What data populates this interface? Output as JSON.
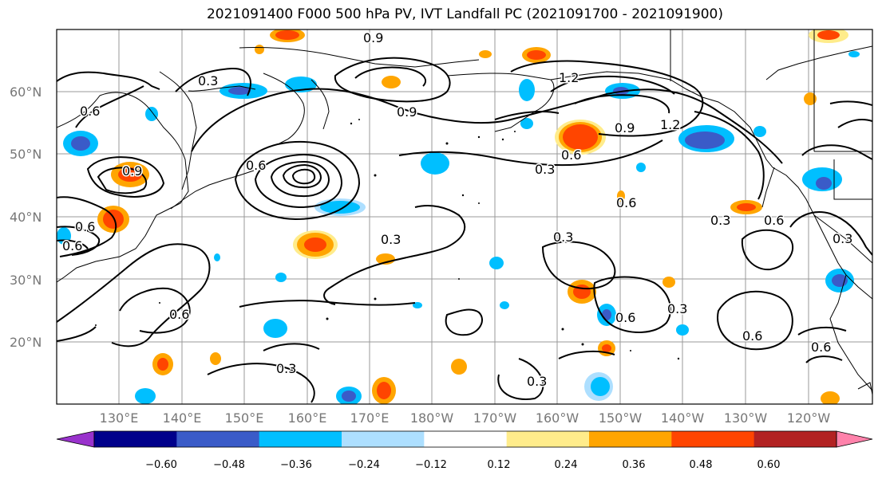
{
  "title": "2021091400 F000 500 hPa PV, IVT Landfall PC (2021091700 - 2021091900)",
  "lat_labels": [
    "60°N",
    "50°N",
    "40°N",
    "30°N",
    "20°N"
  ],
  "lon_labels": [
    "130°E",
    "140°E",
    "150°E",
    "160°E",
    "170°E",
    "180°W",
    "170°W",
    "160°W",
    "150°W",
    "140°W",
    "130°W",
    "120°W"
  ],
  "colorbar": {
    "colors": [
      "#9932CC",
      "#00008B",
      "#3A5BC8",
      "#00BFFF",
      "#ADDFFF",
      "#FFFFFF",
      "#FFEC8B",
      "#FFA500",
      "#FF4500",
      "#B22222",
      "#FF82AB"
    ],
    "tick_labels": [
      "−0.60",
      "−0.48",
      "−0.36",
      "−0.24",
      "−0.12",
      "0.12",
      "0.24",
      "0.36",
      "0.48",
      "0.60"
    ]
  },
  "contour_labels": [
    "0.9",
    "0.6",
    "0.3",
    "0.9",
    "1.2",
    "0.9",
    "0.6",
    "0.9",
    "1.2",
    "0.6",
    "0.3",
    "0.6",
    "0.3",
    "0.6",
    "0.6",
    "0.3",
    "0.3",
    "0.6",
    "0.6",
    "0.3",
    "0.6",
    "0.3",
    "0.6",
    "0.3",
    "0.6",
    "0.3"
  ],
  "colors": {
    "contour": "#000000",
    "grid": "#999999",
    "coast": "#000000"
  }
}
